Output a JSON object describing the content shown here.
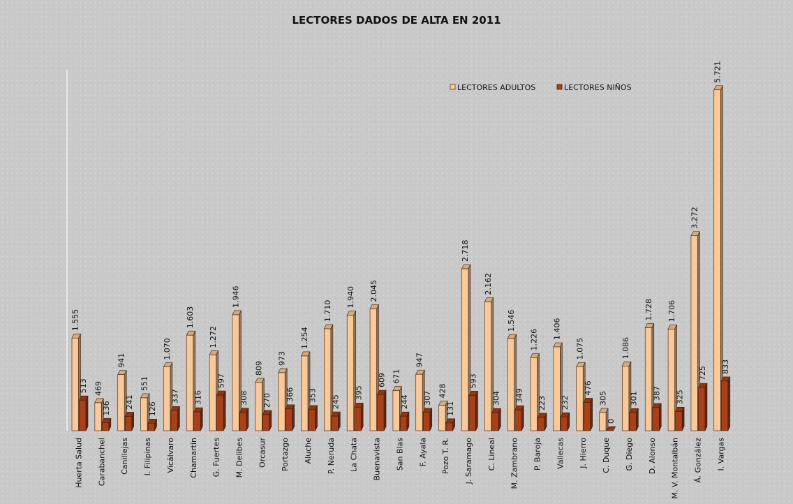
{
  "chart_data": {
    "type": "bar",
    "title": "LECTORES DADOS DE ALTA EN 2011",
    "categories": [
      "Huerta  Salud",
      "Carabanchel",
      "Canillejas",
      "I. Filipinas",
      "Vicálvaro",
      "Chamartín",
      "G. Fuertes",
      "M. Delibes",
      "Orcasur",
      "Portazgo",
      "Aluche",
      "P. Neruda",
      "La Chata",
      "Buenavista",
      "San Blas",
      "F. Ayala",
      "Pozo T. R.",
      "J. Saramago",
      "C. Lineal",
      "M. Zambrano",
      "P. Baroja",
      "Vallecas",
      "J. Hierro",
      "C. Duque",
      "G. Diego",
      "D. Alonso",
      "M. V. Montalbán",
      "Á. González",
      "I. Vargas"
    ],
    "series": [
      {
        "name": "LECTORES ADULTOS",
        "color": "#f9c99a",
        "values": [
          1555,
          469,
          941,
          551,
          1070,
          1603,
          1272,
          1946,
          809,
          973,
          1254,
          1710,
          1940,
          2045,
          671,
          947,
          428,
          2718,
          2162,
          1546,
          1226,
          1406,
          1075,
          305,
          1086,
          1728,
          1706,
          3272,
          5721
        ],
        "labels": [
          "1.555",
          "469",
          "941",
          "551",
          "1.070",
          "1.603",
          "1.272",
          "1.946",
          "809",
          "973",
          "1.254",
          "1.710",
          "1.940",
          "2.045",
          "671",
          "947",
          "428",
          "2.718",
          "2.162",
          "1.546",
          "1.226",
          "1.406",
          "1.075",
          "305",
          "1.086",
          "1.728",
          "1.706",
          "3.272",
          "5.721"
        ]
      },
      {
        "name": "LECTORES NIÑOS",
        "color": "#a8401b",
        "values": [
          513,
          136,
          241,
          126,
          337,
          316,
          597,
          308,
          270,
          366,
          353,
          245,
          395,
          609,
          244,
          307,
          131,
          593,
          304,
          349,
          223,
          232,
          476,
          0,
          301,
          387,
          325,
          725,
          833
        ],
        "labels": [
          "513",
          "136",
          "241",
          "126",
          "337",
          "316",
          "597",
          "308",
          "270",
          "366",
          "353",
          "245",
          "395",
          "609",
          "244",
          "307",
          "131",
          "593",
          "304",
          "349",
          "223",
          "232",
          "476",
          "0",
          "301",
          "387",
          "325",
          "725",
          "833"
        ]
      }
    ],
    "ylim": [
      0,
      5800
    ],
    "grid": false,
    "legend": "top-right",
    "xlabel": "",
    "ylabel": ""
  }
}
